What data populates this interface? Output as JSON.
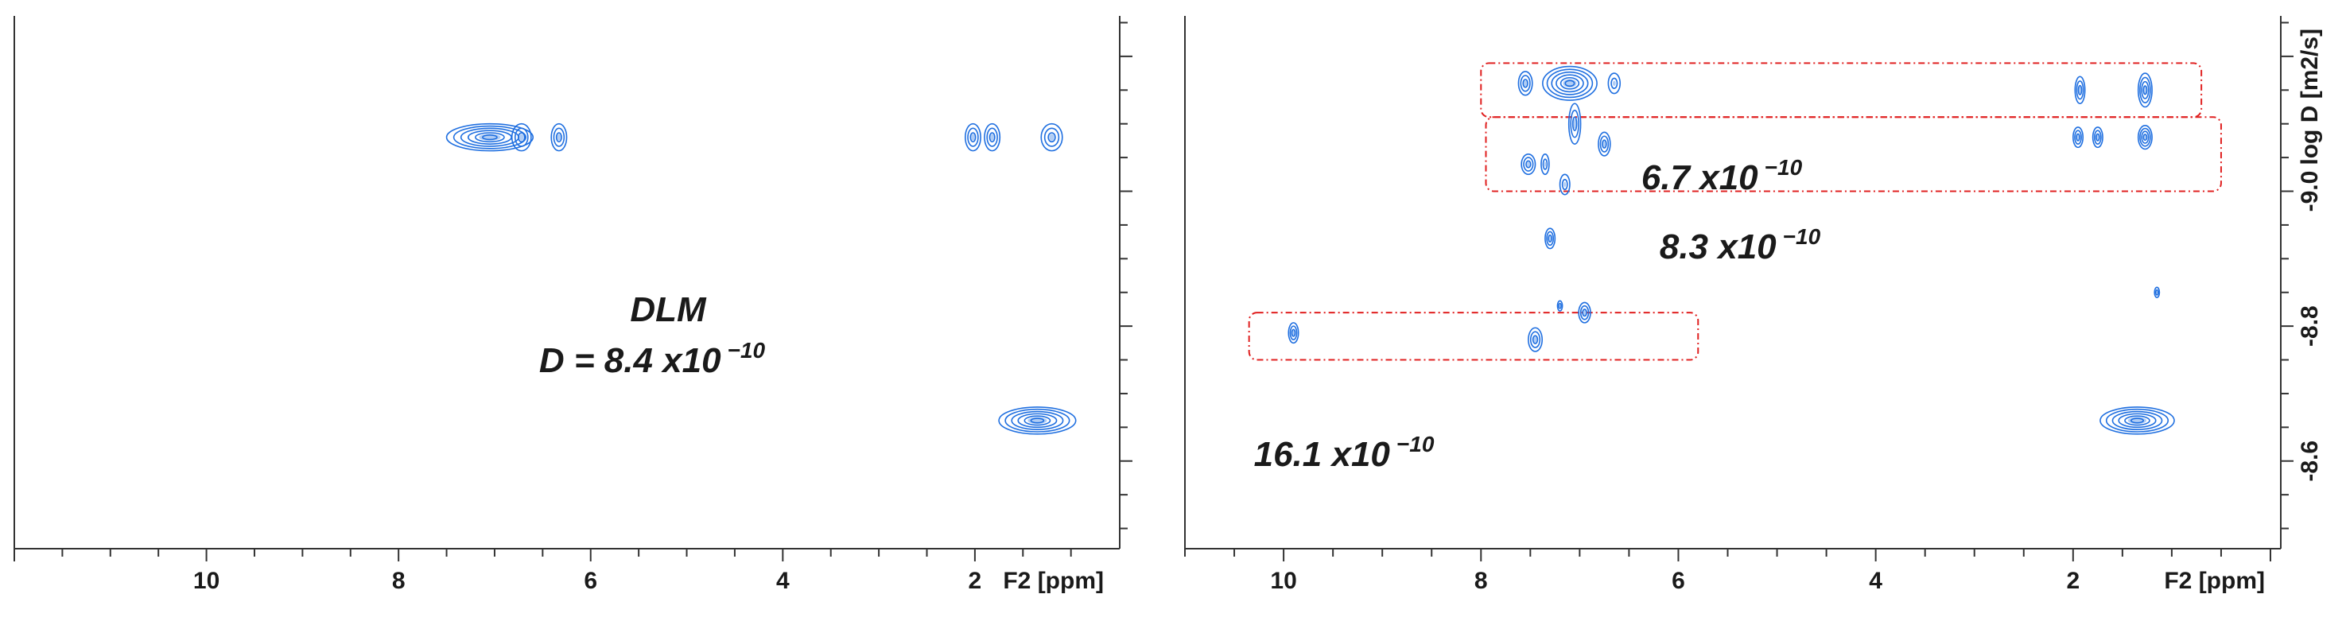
{
  "colors": {
    "peaks": "#1f6fe0",
    "box": "#e02020",
    "axis": "#333333"
  },
  "chart_data": [
    {
      "type": "scatter",
      "panel": "left",
      "xlabel": "F2 [ppm]",
      "ylabel": "",
      "xlim": [
        12.0,
        0.6
      ],
      "ylim": [
        -8.47,
        -9.26
      ],
      "x_ticks": [
        10,
        8,
        6,
        4,
        2
      ],
      "x_tick_labels": [
        "10",
        "8",
        "6",
        "4",
        "2"
      ],
      "y_ticks": [],
      "y_tick_labels": [],
      "grid": false,
      "annotations": [
        {
          "line1": "DLM",
          "line2": "D = 8.4 x10",
          "exponent": "−10"
        }
      ],
      "peaks": [
        {
          "x": 7.05,
          "y": -9.08,
          "w": 0.9,
          "h": 0.04,
          "rings": 6
        },
        {
          "x": 6.72,
          "y": -9.08,
          "w": 0.2,
          "h": 0.04,
          "rings": 3
        },
        {
          "x": 6.33,
          "y": -9.08,
          "w": 0.16,
          "h": 0.04,
          "rings": 3
        },
        {
          "x": 2.02,
          "y": -9.08,
          "w": 0.16,
          "h": 0.04,
          "rings": 3
        },
        {
          "x": 1.82,
          "y": -9.08,
          "w": 0.16,
          "h": 0.04,
          "rings": 3
        },
        {
          "x": 1.2,
          "y": -9.08,
          "w": 0.22,
          "h": 0.04,
          "rings": 3
        },
        {
          "x": 1.35,
          "y": -8.66,
          "w": 0.8,
          "h": 0.04,
          "rings": 6
        }
      ]
    },
    {
      "type": "scatter",
      "panel": "right",
      "xlabel": "F2 [ppm]",
      "ylabel": "log D [m2/s]",
      "xlim": [
        11.0,
        0.0
      ],
      "ylim": [
        -8.47,
        -9.26
      ],
      "x_ticks": [
        10,
        8,
        6,
        4,
        2
      ],
      "x_tick_labels": [
        "10",
        "8",
        "6",
        "4",
        "2"
      ],
      "y_ticks": [
        -9.0,
        -8.8,
        -8.6
      ],
      "y_tick_labels": [
        "-9.0",
        "-8.8",
        "-8.6"
      ],
      "grid": false,
      "annotations": [
        {
          "text": "6.7 x10",
          "exponent": "−10"
        },
        {
          "text": "8.3 x10",
          "exponent": "−10"
        },
        {
          "text": "16.1 x10",
          "exponent": "−10"
        }
      ],
      "boxes": [
        {
          "x1": 8.0,
          "x2": 0.7,
          "y1": -9.19,
          "y2": -9.11,
          "label_index": 0
        },
        {
          "x1": 7.95,
          "x2": 0.5,
          "y1": -9.11,
          "y2": -9.0,
          "label_index": 1
        },
        {
          "x1": 10.35,
          "x2": 5.8,
          "y1": -8.82,
          "y2": -8.75,
          "label_index": 2
        }
      ],
      "peaks": [
        {
          "x": 7.55,
          "y": -9.16,
          "w": 0.14,
          "h": 0.035,
          "rings": 3
        },
        {
          "x": 7.1,
          "y": -9.16,
          "w": 0.55,
          "h": 0.05,
          "rings": 6
        },
        {
          "x": 6.65,
          "y": -9.16,
          "w": 0.12,
          "h": 0.03,
          "rings": 2
        },
        {
          "x": 7.05,
          "y": -9.1,
          "w": 0.12,
          "h": 0.06,
          "rings": 3
        },
        {
          "x": 7.52,
          "y": -9.04,
          "w": 0.14,
          "h": 0.03,
          "rings": 3
        },
        {
          "x": 7.35,
          "y": -9.04,
          "w": 0.08,
          "h": 0.03,
          "rings": 2
        },
        {
          "x": 7.15,
          "y": -9.01,
          "w": 0.1,
          "h": 0.03,
          "rings": 2
        },
        {
          "x": 6.75,
          "y": -9.07,
          "w": 0.12,
          "h": 0.035,
          "rings": 3
        },
        {
          "x": 7.3,
          "y": -8.93,
          "w": 0.1,
          "h": 0.03,
          "rings": 3
        },
        {
          "x": 7.2,
          "y": -8.83,
          "w": 0.05,
          "h": 0.015,
          "rings": 2
        },
        {
          "x": 6.95,
          "y": -8.82,
          "w": 0.12,
          "h": 0.03,
          "rings": 3
        },
        {
          "x": 7.45,
          "y": -8.78,
          "w": 0.14,
          "h": 0.035,
          "rings": 3
        },
        {
          "x": 9.9,
          "y": -8.79,
          "w": 0.1,
          "h": 0.03,
          "rings": 3
        },
        {
          "x": 1.93,
          "y": -9.15,
          "w": 0.1,
          "h": 0.04,
          "rings": 3
        },
        {
          "x": 1.27,
          "y": -9.15,
          "w": 0.14,
          "h": 0.05,
          "rings": 4
        },
        {
          "x": 1.95,
          "y": -9.08,
          "w": 0.1,
          "h": 0.03,
          "rings": 3
        },
        {
          "x": 1.75,
          "y": -9.08,
          "w": 0.1,
          "h": 0.03,
          "rings": 3
        },
        {
          "x": 1.27,
          "y": -9.08,
          "w": 0.14,
          "h": 0.035,
          "rings": 4
        },
        {
          "x": 1.15,
          "y": -8.85,
          "w": 0.05,
          "h": 0.015,
          "rings": 2
        },
        {
          "x": 1.35,
          "y": -8.66,
          "w": 0.75,
          "h": 0.04,
          "rings": 6
        }
      ]
    }
  ]
}
